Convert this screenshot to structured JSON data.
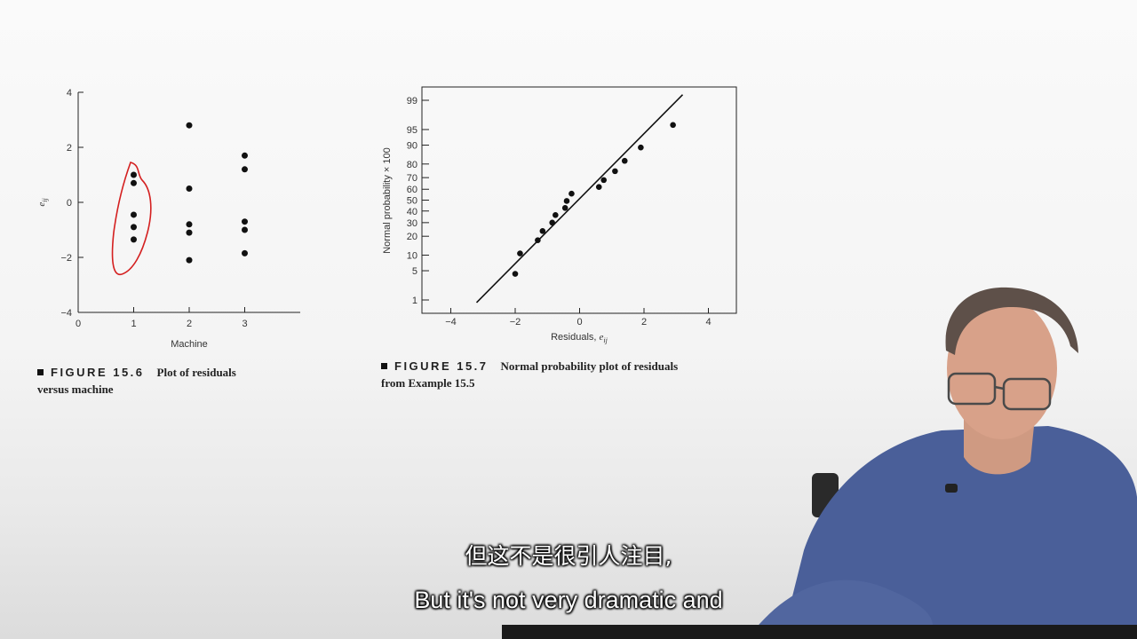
{
  "chart_data": [
    {
      "type": "scatter",
      "title": "",
      "xlabel": "Machine",
      "ylabel": "e_ij",
      "xlim": [
        0,
        4
      ],
      "ylim": [
        -4,
        4
      ],
      "xticks": [
        "0",
        "1",
        "2",
        "3"
      ],
      "yticks": [
        "−4",
        "−2",
        "0",
        "2",
        "4"
      ],
      "points": [
        {
          "x": 1,
          "y": 1.0
        },
        {
          "x": 1,
          "y": 0.7
        },
        {
          "x": 1,
          "y": -0.45
        },
        {
          "x": 1,
          "y": -0.9
        },
        {
          "x": 1,
          "y": -1.35
        },
        {
          "x": 2,
          "y": 2.8
        },
        {
          "x": 2,
          "y": 0.5
        },
        {
          "x": 2,
          "y": -0.8
        },
        {
          "x": 2,
          "y": -1.1
        },
        {
          "x": 2,
          "y": -2.1
        },
        {
          "x": 3,
          "y": 1.7
        },
        {
          "x": 3,
          "y": 1.2
        },
        {
          "x": 3,
          "y": -0.7
        },
        {
          "x": 3,
          "y": -1.0
        },
        {
          "x": 3,
          "y": -1.85
        }
      ],
      "annotation": {
        "type": "hand-drawn red loop around machine 1 residuals",
        "color": "#d42020"
      }
    },
    {
      "type": "scatter",
      "title": "",
      "xlabel": "Residuals, e_ij",
      "ylabel": "Normal probability × 100",
      "xlim": [
        -5,
        5
      ],
      "xticks": [
        "−4",
        "−2",
        "0",
        "2",
        "4"
      ],
      "ytick_labels": [
        "1",
        "5",
        "10",
        "20",
        "30",
        "40",
        "50",
        "60",
        "70",
        "80",
        "90",
        "95",
        "99"
      ],
      "y_scale": "normal probability",
      "points": [
        {
          "x": -2.0,
          "y": 4.3
        },
        {
          "x": -1.85,
          "y": 10.7
        },
        {
          "x": -1.3,
          "y": 17.5
        },
        {
          "x": -1.15,
          "y": 23.6
        },
        {
          "x": -0.85,
          "y": 30.0
        },
        {
          "x": -0.75,
          "y": 36.4
        },
        {
          "x": -0.45,
          "y": 42.8
        },
        {
          "x": -0.4,
          "y": 49.2
        },
        {
          "x": -0.25,
          "y": 56.0
        },
        {
          "x": 0.6,
          "y": 62.0
        },
        {
          "x": 0.75,
          "y": 68.0
        },
        {
          "x": 1.1,
          "y": 75.0
        },
        {
          "x": 1.4,
          "y": 82.0
        },
        {
          "x": 1.9,
          "y": 89.0
        },
        {
          "x": 2.9,
          "y": 96.0
        }
      ],
      "fit_line": [
        {
          "x": -3.2,
          "y": 0.85
        },
        {
          "x": 3.2,
          "y": 99.3
        }
      ]
    }
  ],
  "captions": {
    "fig1_num": "FIGURE 15.6",
    "fig1_text": "Plot of residuals",
    "fig1_text2": "versus machine",
    "fig2_num": "FIGURE 15.7",
    "fig2_text": "Normal probability plot of residuals",
    "fig2_text2": "from Example 15.5"
  },
  "subtitles": {
    "chinese": "但这不是很引人注目,",
    "english": "But it's not very dramatic and"
  }
}
